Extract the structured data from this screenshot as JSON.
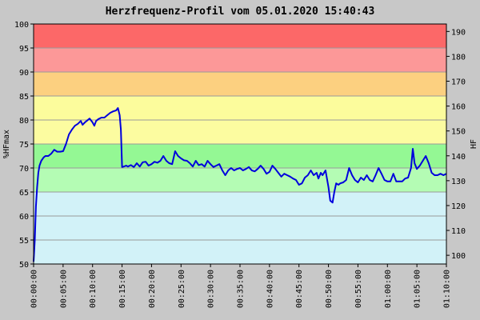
{
  "chart_data": {
    "type": "line",
    "title": "Herzfrequenz-Profil vom 05.01.2020 15:40:43",
    "ylabel": "%HFmax",
    "y2label": "HF",
    "ylim": [
      50,
      100
    ],
    "y2lim": [
      96.5,
      193
    ],
    "xlim": [
      0,
      70
    ],
    "x_unit": "minutes",
    "yticks": [
      50,
      55,
      60,
      65,
      70,
      75,
      80,
      85,
      90,
      95,
      100
    ],
    "y2ticks": [
      100,
      110,
      120,
      130,
      140,
      150,
      160,
      170,
      180,
      190
    ],
    "xticks": [
      {
        "value": 0,
        "label": "00:00:00"
      },
      {
        "value": 5,
        "label": "00:05:00"
      },
      {
        "value": 10,
        "label": "00:10:00"
      },
      {
        "value": 15,
        "label": "00:15:00"
      },
      {
        "value": 20,
        "label": "00:20:00"
      },
      {
        "value": 25,
        "label": "00:25:00"
      },
      {
        "value": 30,
        "label": "00:30:00"
      },
      {
        "value": 35,
        "label": "00:35:00"
      },
      {
        "value": 40,
        "label": "00:40:00"
      },
      {
        "value": 45,
        "label": "00:45:00"
      },
      {
        "value": 50,
        "label": "00:50:00"
      },
      {
        "value": 55,
        "label": "00:55:00"
      },
      {
        "value": 60,
        "label": "01:00:00"
      },
      {
        "value": 65,
        "label": "01:05:00"
      },
      {
        "value": 70,
        "label": "01:10:00"
      }
    ],
    "zones": [
      {
        "from": 50,
        "to": 65,
        "color": "#d2f2f8"
      },
      {
        "from": 65,
        "to": 70,
        "color": "#b4fcb4"
      },
      {
        "from": 70,
        "to": 75,
        "color": "#94f894"
      },
      {
        "from": 75,
        "to": 80,
        "color": "#fcfca0"
      },
      {
        "from": 80,
        "to": 85,
        "color": "#fcfc9c"
      },
      {
        "from": 85,
        "to": 90,
        "color": "#fcd080"
      },
      {
        "from": 90,
        "to": 95,
        "color": "#fc9898"
      },
      {
        "from": 95,
        "to": 100,
        "color": "#fc6868"
      }
    ],
    "series": [
      {
        "color": "#0000dd",
        "points": [
          [
            0.0,
            50.5
          ],
          [
            0.2,
            55
          ],
          [
            0.4,
            62
          ],
          [
            0.6,
            66
          ],
          [
            0.8,
            69
          ],
          [
            1.0,
            70.5
          ],
          [
            1.3,
            71.5
          ],
          [
            1.7,
            72.2
          ],
          [
            2.0,
            72.5
          ],
          [
            2.5,
            72.5
          ],
          [
            3.0,
            73
          ],
          [
            3.5,
            73.8
          ],
          [
            4.0,
            73.4
          ],
          [
            4.5,
            73.4
          ],
          [
            5.0,
            73.5
          ],
          [
            5.5,
            75
          ],
          [
            6.0,
            77
          ],
          [
            6.5,
            78
          ],
          [
            7.0,
            78.8
          ],
          [
            7.5,
            79.2
          ],
          [
            8.0,
            79.8
          ],
          [
            8.3,
            79
          ],
          [
            8.7,
            79.5
          ],
          [
            9.0,
            79.8
          ],
          [
            9.5,
            80.3
          ],
          [
            10.0,
            79.5
          ],
          [
            10.3,
            78.8
          ],
          [
            10.6,
            79.8
          ],
          [
            11.0,
            80.2
          ],
          [
            11.5,
            80.5
          ],
          [
            12.0,
            80.5
          ],
          [
            12.5,
            81
          ],
          [
            13.0,
            81.5
          ],
          [
            13.5,
            81.8
          ],
          [
            14.0,
            82
          ],
          [
            14.3,
            82.5
          ],
          [
            14.6,
            81
          ],
          [
            14.8,
            78
          ],
          [
            15.0,
            70.2
          ],
          [
            15.3,
            70.3
          ],
          [
            15.7,
            70.5
          ],
          [
            16.0,
            70.3
          ],
          [
            16.5,
            70.6
          ],
          [
            17.0,
            70.2
          ],
          [
            17.5,
            71
          ],
          [
            18.0,
            70.3
          ],
          [
            18.5,
            71.2
          ],
          [
            19.0,
            71.3
          ],
          [
            19.5,
            70.5
          ],
          [
            20.0,
            70.8
          ],
          [
            20.5,
            71.3
          ],
          [
            21.0,
            71.1
          ],
          [
            21.5,
            71.5
          ],
          [
            22.0,
            72.5
          ],
          [
            22.5,
            71.5
          ],
          [
            23.0,
            71
          ],
          [
            23.5,
            70.8
          ],
          [
            24.0,
            73.5
          ],
          [
            24.5,
            72.5
          ],
          [
            25.0,
            72
          ],
          [
            25.5,
            71.6
          ],
          [
            26.0,
            71.5
          ],
          [
            26.5,
            71
          ],
          [
            27.0,
            70.3
          ],
          [
            27.5,
            71.5
          ],
          [
            28.0,
            70.6
          ],
          [
            28.5,
            70.8
          ],
          [
            29.0,
            70.3
          ],
          [
            29.5,
            71.5
          ],
          [
            30.0,
            70.8
          ],
          [
            30.5,
            70.2
          ],
          [
            31.0,
            70.5
          ],
          [
            31.5,
            70.8
          ],
          [
            32.0,
            69.5
          ],
          [
            32.5,
            68.5
          ],
          [
            33.0,
            69.5
          ],
          [
            33.5,
            70
          ],
          [
            34.0,
            69.5
          ],
          [
            34.5,
            69.8
          ],
          [
            35.0,
            70
          ],
          [
            35.5,
            69.5
          ],
          [
            36.0,
            69.8
          ],
          [
            36.5,
            70.2
          ],
          [
            37.0,
            69.5
          ],
          [
            37.5,
            69.3
          ],
          [
            38.0,
            69.8
          ],
          [
            38.5,
            70.5
          ],
          [
            39.0,
            69.8
          ],
          [
            39.5,
            68.8
          ],
          [
            40.0,
            69.2
          ],
          [
            40.5,
            70.5
          ],
          [
            41.0,
            69.8
          ],
          [
            41.5,
            69
          ],
          [
            42.0,
            68.2
          ],
          [
            42.5,
            68.8
          ],
          [
            43.0,
            68.5
          ],
          [
            43.5,
            68.2
          ],
          [
            44.0,
            67.8
          ],
          [
            44.5,
            67.5
          ],
          [
            45.0,
            66.5
          ],
          [
            45.5,
            66.8
          ],
          [
            46.0,
            68
          ],
          [
            46.5,
            68.5
          ],
          [
            47.0,
            69.5
          ],
          [
            47.5,
            68.5
          ],
          [
            48.0,
            69
          ],
          [
            48.3,
            67.8
          ],
          [
            48.7,
            69
          ],
          [
            49.0,
            68.5
          ],
          [
            49.5,
            69.5
          ],
          [
            50.0,
            66
          ],
          [
            50.3,
            63.2
          ],
          [
            50.7,
            62.8
          ],
          [
            51.0,
            65
          ],
          [
            51.3,
            66.8
          ],
          [
            51.7,
            66.5
          ],
          [
            52.0,
            66.8
          ],
          [
            52.5,
            67
          ],
          [
            53.0,
            67.5
          ],
          [
            53.5,
            70
          ],
          [
            54.0,
            68.5
          ],
          [
            54.5,
            67.5
          ],
          [
            55.0,
            67
          ],
          [
            55.5,
            68
          ],
          [
            56.0,
            67.5
          ],
          [
            56.5,
            68.5
          ],
          [
            57.0,
            67.5
          ],
          [
            57.5,
            67.2
          ],
          [
            58.0,
            68.5
          ],
          [
            58.5,
            70
          ],
          [
            59.0,
            68.8
          ],
          [
            59.5,
            67.5
          ],
          [
            60.0,
            67.2
          ],
          [
            60.5,
            67.2
          ],
          [
            61.0,
            68.8
          ],
          [
            61.5,
            67.2
          ],
          [
            62.0,
            67.2
          ],
          [
            62.5,
            67.2
          ],
          [
            63.0,
            67.8
          ],
          [
            63.5,
            68
          ],
          [
            64.0,
            70
          ],
          [
            64.3,
            74
          ],
          [
            64.6,
            71
          ],
          [
            65.0,
            69.8
          ],
          [
            65.5,
            70.5
          ],
          [
            66.0,
            71.5
          ],
          [
            66.5,
            72.5
          ],
          [
            67.0,
            71
          ],
          [
            67.5,
            69
          ],
          [
            68.0,
            68.5
          ],
          [
            68.5,
            68.5
          ],
          [
            69.0,
            68.8
          ],
          [
            69.5,
            68.5
          ],
          [
            70.0,
            68.8
          ]
        ]
      }
    ]
  }
}
